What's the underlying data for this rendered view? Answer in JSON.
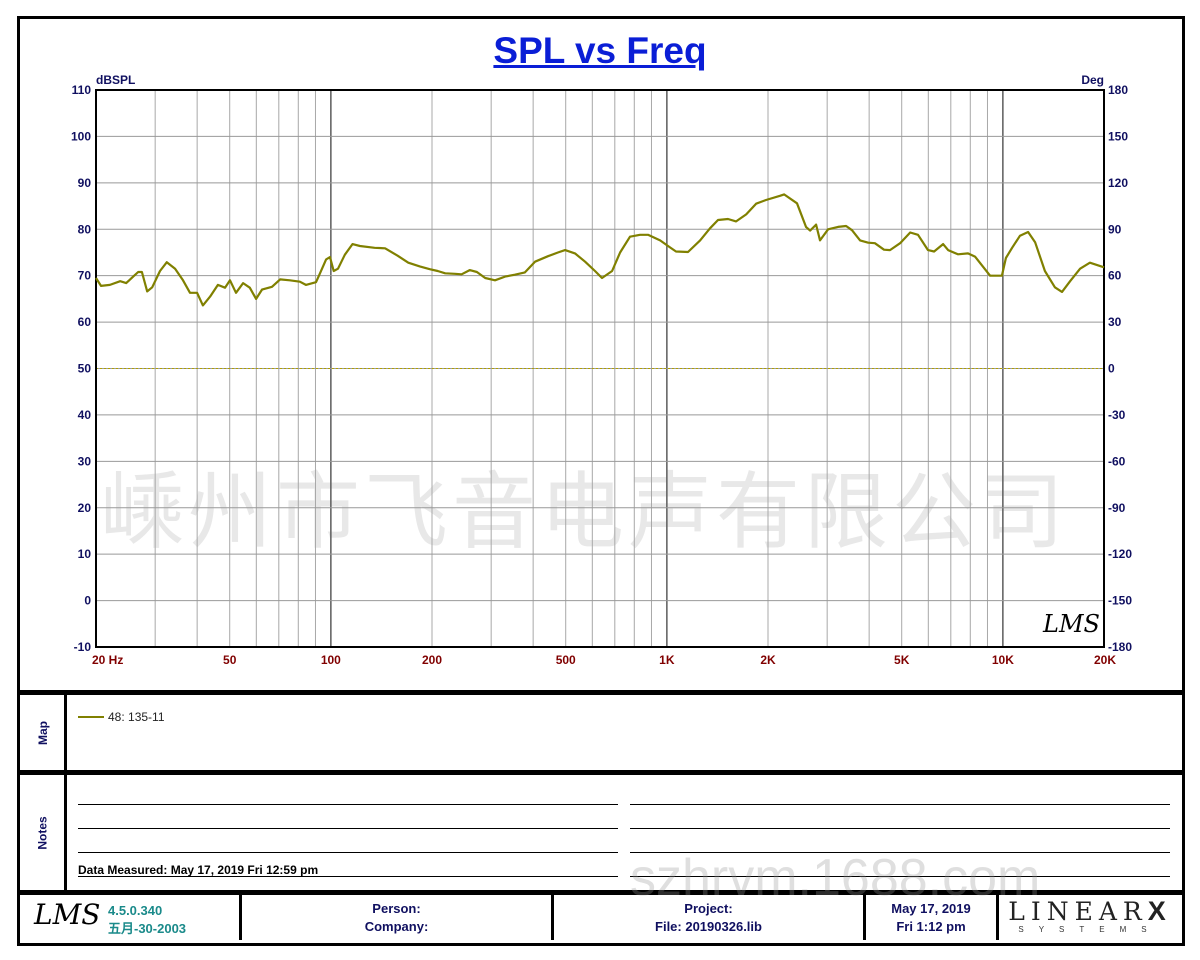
{
  "chart_data": {
    "type": "line",
    "title": "SPL vs Freq",
    "ylabel": "dBSPL",
    "y2label": "Deg",
    "xscale": "log",
    "xlim": [
      20,
      20000
    ],
    "ylim": [
      -10,
      110
    ],
    "y2lim": [
      -180,
      180
    ],
    "grid": true,
    "x_ticks": [
      {
        "v": 20,
        "label": "20  Hz"
      },
      {
        "v": 50,
        "label": "50"
      },
      {
        "v": 100,
        "label": "100"
      },
      {
        "v": 200,
        "label": "200"
      },
      {
        "v": 500,
        "label": "500"
      },
      {
        "v": 1000,
        "label": "1K"
      },
      {
        "v": 2000,
        "label": "2K"
      },
      {
        "v": 5000,
        "label": "5K"
      },
      {
        "v": 10000,
        "label": "10K"
      },
      {
        "v": 20000,
        "label": "20K"
      }
    ],
    "y_ticks": [
      "110",
      "100",
      "90",
      "80",
      "70",
      "60",
      "50",
      "40",
      "30",
      "20",
      "10",
      "0",
      "-10"
    ],
    "y2_ticks": [
      "180",
      "150",
      "120",
      "90",
      "60",
      "30",
      "0",
      "-30",
      "-60",
      "-90",
      "-120",
      "-150",
      "-180"
    ],
    "reference_line_db": 50,
    "series": [
      {
        "name": "48: 135-11",
        "color": "#808000",
        "x": [
          20,
          20.7,
          22,
          23.6,
          24.6,
          25.8,
          26.7,
          27.4,
          28.4,
          29.4,
          31,
          32.5,
          34.4,
          36.3,
          38.1,
          40,
          41.6,
          43.7,
          46.1,
          48.4,
          50.1,
          52.2,
          54.8,
          57.4,
          59.9,
          62.4,
          66.8,
          70.6,
          75.5,
          80.9,
          84.3,
          90.3,
          92.8,
          96.8,
          99.4,
          102,
          105,
          110,
          116,
          122,
          135,
          145,
          158,
          170,
          184,
          197,
          208,
          219,
          234,
          245,
          259,
          272,
          288,
          308,
          330,
          353,
          378,
          405,
          443,
          474,
          498,
          533,
          571,
          611,
          641,
          687,
          726,
          777,
          832,
          879,
          955,
          1022,
          1065,
          1156,
          1256,
          1344,
          1420,
          1521,
          1607,
          1722,
          1843,
          1973,
          2172,
          2233,
          2440,
          2595,
          2668,
          2780,
          2857,
          3019,
          3231,
          3415,
          3557,
          3759,
          3973,
          4162,
          4428,
          4615,
          4945,
          5298,
          5590,
          5989,
          6241,
          6640,
          6873,
          7350,
          7875,
          8260,
          9162,
          9937,
          10213,
          10655,
          11247,
          11886,
          12474,
          13340,
          14290,
          15000,
          15850,
          16980,
          18160,
          20000
        ],
        "y": [
          69.5,
          67.8,
          68,
          68.8,
          68.4,
          69.8,
          70.8,
          70.8,
          66.6,
          67.5,
          71,
          72.9,
          71.5,
          69,
          66.3,
          66.3,
          63.6,
          65.5,
          68,
          67.4,
          69,
          66.3,
          68.4,
          67.4,
          65,
          67,
          67.6,
          69.2,
          69,
          68.7,
          68,
          68.6,
          70.5,
          73.5,
          74,
          71,
          71.5,
          74.5,
          76.8,
          76.4,
          76,
          75.9,
          74.3,
          72.8,
          72,
          71.4,
          71,
          70.5,
          70.4,
          70.3,
          71.2,
          70.8,
          69.5,
          69,
          69.8,
          70.2,
          70.7,
          73,
          74.2,
          75,
          75.5,
          74.8,
          73,
          71,
          69.5,
          71,
          75,
          78.4,
          78.8,
          78.8,
          77.6,
          76.1,
          75.2,
          75.1,
          77.6,
          80.2,
          82,
          82.2,
          81.7,
          83.2,
          85.5,
          86.3,
          87.2,
          87.5,
          85.6,
          80.5,
          79.7,
          81,
          77.6,
          80,
          80.5,
          80.7,
          79.8,
          77.6,
          77.1,
          77,
          75.6,
          75.5,
          77,
          79.3,
          78.8,
          75.5,
          75.2,
          76.8,
          75.5,
          74.6,
          74.8,
          74.1,
          70,
          70,
          73.8,
          76,
          78.6,
          79.4,
          77.2,
          71,
          67.5,
          66.5,
          68.8,
          71.5,
          72.8,
          71.8
        ]
      }
    ]
  },
  "watermark": "嵊州市飞音电声有限公司",
  "watermark2": "szhrvm.1688.com",
  "map": {
    "label": "Map",
    "legend": "48: 135-11"
  },
  "notes": {
    "label": "Notes",
    "measured": "Data Measured: May 17, 2019  Fri 12:59 pm"
  },
  "footer": {
    "logo": "LMS",
    "version": "4.5.0.340",
    "build_date": "五月-30-2003",
    "person": "Person:",
    "company": "Company:",
    "project": "Project:",
    "file": "File: 20190326.lib",
    "date": "May 17, 2019",
    "time": "Fri  1:12 pm",
    "brand": "LINEAR",
    "brand_x": "X",
    "brand_sub": "SYSTEMS"
  }
}
